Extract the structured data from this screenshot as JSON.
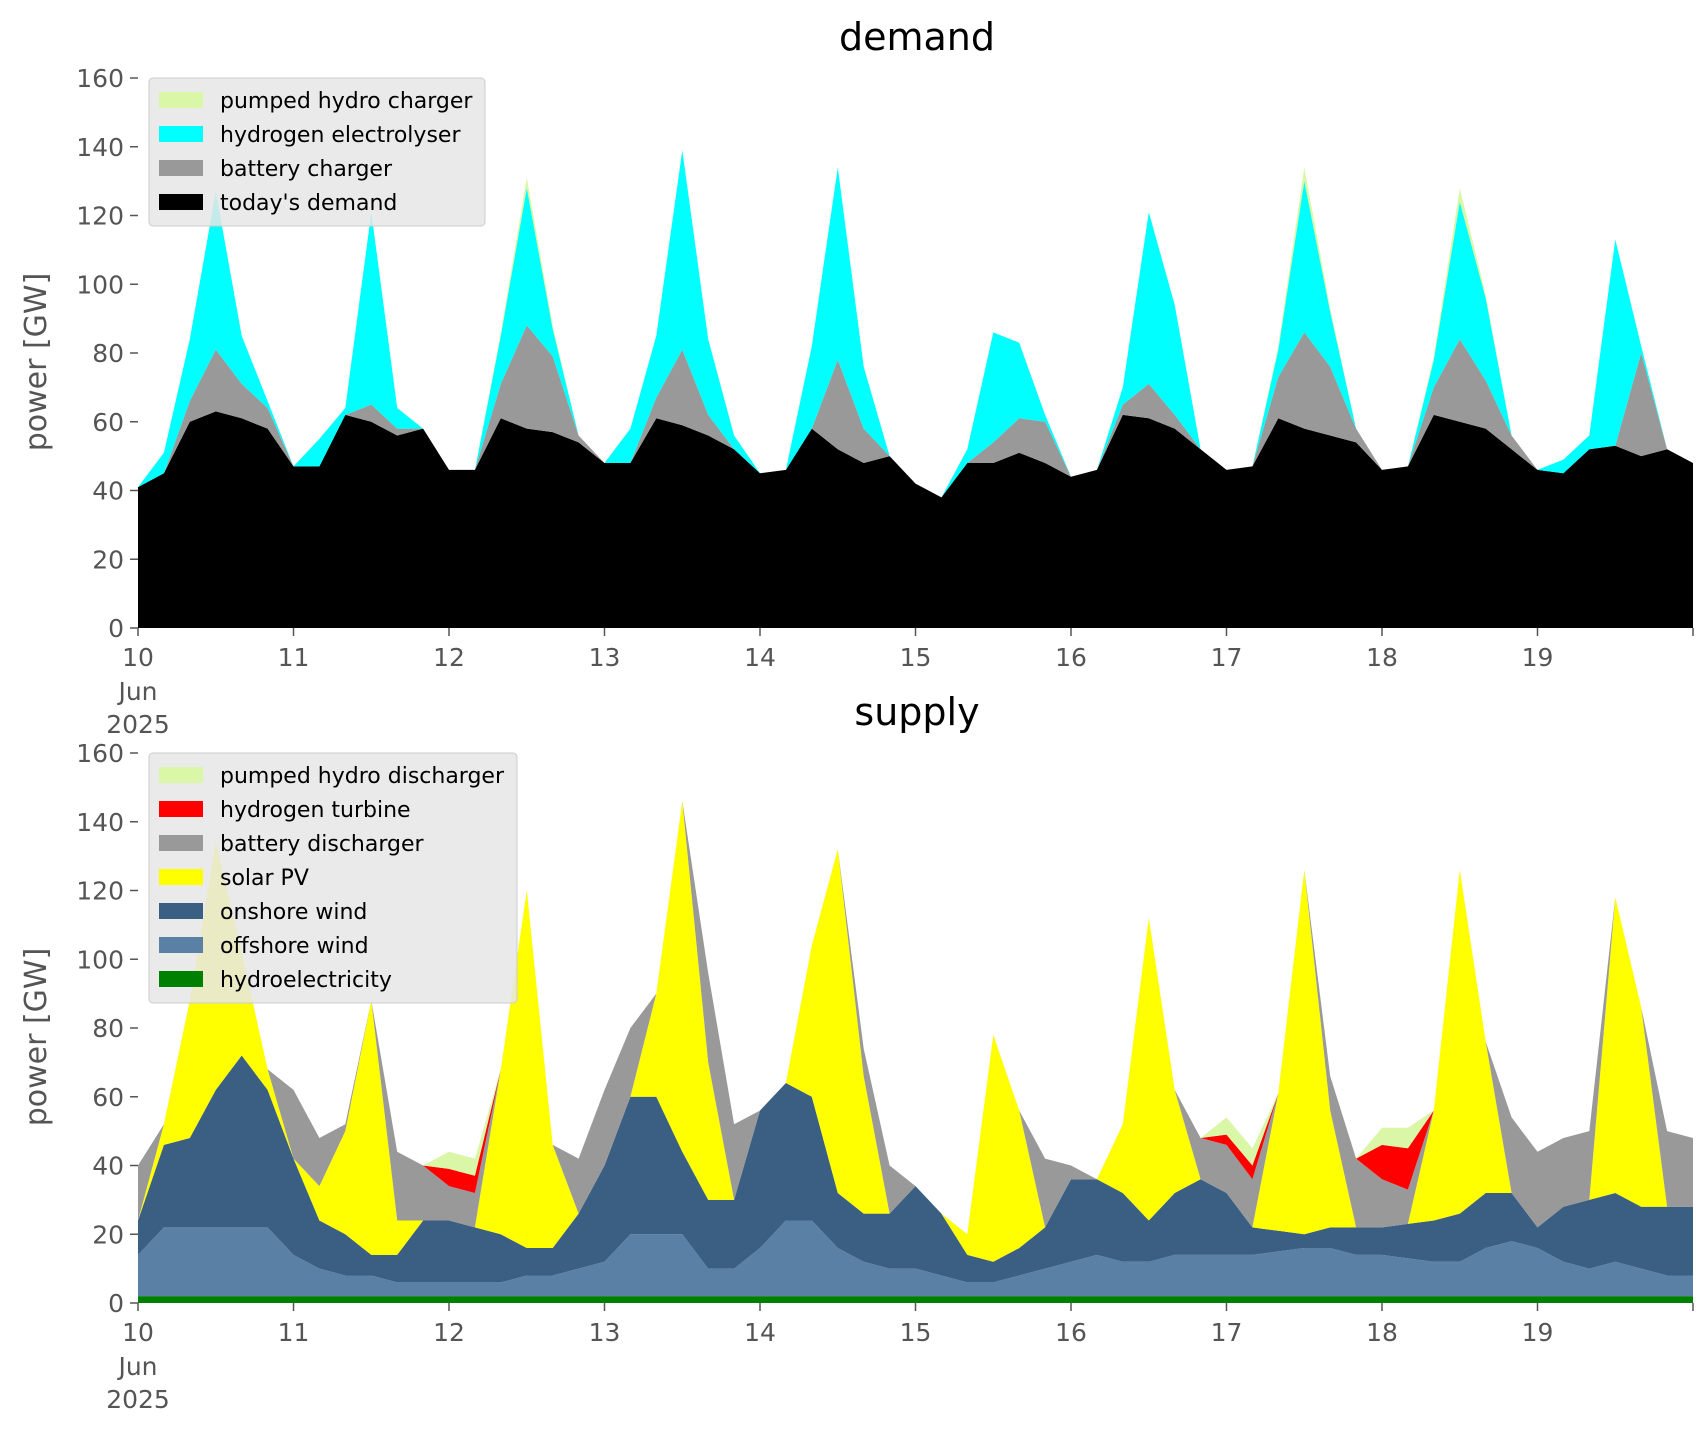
{
  "chart_data": [
    {
      "type": "area",
      "stacked": true,
      "title": "demand",
      "ylabel": "power [GW]",
      "ylim": [
        0,
        160
      ],
      "yticks": [
        0,
        20,
        40,
        60,
        80,
        100,
        120,
        140,
        160
      ],
      "xlim": [
        "2025-06-10 00:00",
        "2025-06-20 00:00"
      ],
      "xticks": [
        "10",
        "11",
        "12",
        "13",
        "14",
        "15",
        "16",
        "17",
        "18",
        "19"
      ],
      "xtick_sub": [
        "Jun",
        "2025"
      ],
      "legend_position": "upper-left",
      "x_units": "hours since 2025-06-10 00:00",
      "x": [
        0,
        4,
        8,
        12,
        16,
        20,
        24,
        28,
        32,
        36,
        40,
        44,
        48,
        52,
        56,
        60,
        64,
        68,
        72,
        76,
        80,
        84,
        88,
        92,
        96,
        100,
        104,
        108,
        112,
        116,
        120,
        124,
        128,
        132,
        136,
        140,
        144,
        148,
        152,
        156,
        160,
        164,
        168,
        172,
        176,
        180,
        184,
        188,
        192,
        196,
        200,
        204,
        208,
        212,
        216,
        220,
        224,
        228,
        232,
        236,
        240
      ],
      "series": [
        {
          "name": "today's demand",
          "color": "#000000",
          "values": [
            41,
            45,
            60,
            63,
            61,
            58,
            47,
            47,
            62,
            60,
            56,
            58,
            46,
            46,
            61,
            58,
            57,
            54,
            48,
            48,
            61,
            59,
            56,
            52,
            45,
            46,
            58,
            52,
            48,
            50,
            42,
            38,
            48,
            48,
            51,
            48,
            44,
            46,
            62,
            61,
            58,
            52,
            46,
            47,
            61,
            58,
            56,
            54,
            46,
            47,
            62,
            60,
            58,
            52,
            46,
            45,
            52,
            53,
            50,
            52,
            48
          ]
        },
        {
          "name": "battery charger",
          "color": "#999999",
          "values": [
            0,
            0,
            6,
            18,
            10,
            6,
            0,
            0,
            0,
            5,
            2,
            0,
            0,
            0,
            10,
            30,
            22,
            2,
            0,
            0,
            6,
            22,
            6,
            0,
            0,
            0,
            0,
            26,
            10,
            0,
            0,
            0,
            0,
            6,
            10,
            12,
            0,
            0,
            3,
            10,
            4,
            0,
            0,
            0,
            12,
            28,
            20,
            4,
            0,
            0,
            8,
            24,
            14,
            4,
            0,
            0,
            0,
            0,
            30,
            0,
            0
          ]
        },
        {
          "name": "hydrogen electrolyser",
          "color": "#00ffff",
          "values": [
            0,
            6,
            18,
            46,
            14,
            2,
            0,
            8,
            2,
            56,
            6,
            0,
            0,
            0,
            14,
            40,
            8,
            0,
            0,
            10,
            18,
            58,
            22,
            4,
            0,
            0,
            24,
            56,
            18,
            0,
            0,
            0,
            4,
            32,
            22,
            2,
            0,
            0,
            5,
            50,
            32,
            0,
            0,
            0,
            8,
            44,
            16,
            0,
            0,
            0,
            8,
            40,
            24,
            0,
            0,
            4,
            4,
            60,
            2,
            0,
            0
          ]
        },
        {
          "name": "pumped hydro charger",
          "color": "#d9f7a6",
          "values": [
            0,
            0,
            0,
            0,
            0,
            0,
            0,
            0,
            0,
            0,
            0,
            0,
            0,
            0,
            1,
            3,
            1,
            0,
            0,
            0,
            0,
            0,
            0,
            0,
            0,
            0,
            0,
            0,
            0,
            0,
            0,
            0,
            0,
            0,
            0,
            0,
            0,
            0,
            0,
            0,
            0,
            0,
            0,
            0,
            1,
            4,
            1,
            0,
            0,
            0,
            1,
            4,
            1,
            0,
            0,
            0,
            0,
            0,
            0,
            0,
            0
          ]
        }
      ]
    },
    {
      "type": "area",
      "stacked": true,
      "title": "supply",
      "ylabel": "power [GW]",
      "ylim": [
        0,
        160
      ],
      "yticks": [
        0,
        20,
        40,
        60,
        80,
        100,
        120,
        140,
        160
      ],
      "xlim": [
        "2025-06-10 00:00",
        "2025-06-20 00:00"
      ],
      "xticks": [
        "10",
        "11",
        "12",
        "13",
        "14",
        "15",
        "16",
        "17",
        "18",
        "19"
      ],
      "xtick_sub": [
        "Jun",
        "2025"
      ],
      "legend_position": "upper-left",
      "x_units": "hours since 2025-06-10 00:00",
      "x": [
        0,
        4,
        8,
        12,
        16,
        20,
        24,
        28,
        32,
        36,
        40,
        44,
        48,
        52,
        56,
        60,
        64,
        68,
        72,
        76,
        80,
        84,
        88,
        92,
        96,
        100,
        104,
        108,
        112,
        116,
        120,
        124,
        128,
        132,
        136,
        140,
        144,
        148,
        152,
        156,
        160,
        164,
        168,
        172,
        176,
        180,
        184,
        188,
        192,
        196,
        200,
        204,
        208,
        212,
        216,
        220,
        224,
        228,
        232,
        236,
        240
      ],
      "series": [
        {
          "name": "hydroelectricity",
          "color": "#008000",
          "values": [
            2,
            2,
            2,
            2,
            2,
            2,
            2,
            2,
            2,
            2,
            2,
            2,
            2,
            2,
            2,
            2,
            2,
            2,
            2,
            2,
            2,
            2,
            2,
            2,
            2,
            2,
            2,
            2,
            2,
            2,
            2,
            2,
            2,
            2,
            2,
            2,
            2,
            2,
            2,
            2,
            2,
            2,
            2,
            2,
            2,
            2,
            2,
            2,
            2,
            2,
            2,
            2,
            2,
            2,
            2,
            2,
            2,
            2,
            2,
            2,
            2
          ]
        },
        {
          "name": "offshore wind",
          "color": "#5b80a5",
          "values": [
            12,
            20,
            20,
            20,
            20,
            20,
            12,
            8,
            6,
            6,
            4,
            4,
            4,
            4,
            4,
            6,
            6,
            8,
            10,
            18,
            18,
            18,
            8,
            8,
            14,
            22,
            22,
            14,
            10,
            8,
            8,
            6,
            4,
            4,
            6,
            8,
            10,
            12,
            10,
            10,
            12,
            12,
            12,
            12,
            13,
            14,
            14,
            12,
            12,
            11,
            10,
            10,
            14,
            16,
            14,
            10,
            8,
            10,
            8,
            6,
            6
          ]
        },
        {
          "name": "onshore wind",
          "color": "#3a5f82",
          "values": [
            10,
            24,
            26,
            40,
            50,
            40,
            28,
            14,
            12,
            6,
            8,
            18,
            18,
            16,
            14,
            8,
            8,
            16,
            28,
            40,
            40,
            24,
            20,
            20,
            40,
            40,
            36,
            16,
            14,
            16,
            24,
            18,
            8,
            6,
            8,
            12,
            24,
            22,
            20,
            12,
            18,
            22,
            18,
            8,
            6,
            4,
            6,
            8,
            8,
            10,
            12,
            14,
            16,
            14,
            6,
            16,
            20,
            20,
            18,
            20,
            20
          ]
        },
        {
          "name": "solar PV",
          "color": "#ffff00",
          "values": [
            0,
            6,
            40,
            72,
            30,
            6,
            0,
            10,
            30,
            74,
            10,
            0,
            0,
            0,
            48,
            104,
            30,
            0,
            0,
            0,
            30,
            102,
            40,
            0,
            0,
            0,
            44,
            100,
            40,
            0,
            0,
            0,
            6,
            66,
            40,
            0,
            0,
            0,
            20,
            88,
            30,
            0,
            0,
            0,
            40,
            106,
            34,
            0,
            0,
            0,
            32,
            100,
            44,
            0,
            0,
            0,
            0,
            86,
            58,
            0,
            0
          ]
        },
        {
          "name": "battery discharger",
          "color": "#999999",
          "values": [
            16,
            0,
            0,
            0,
            0,
            0,
            20,
            14,
            2,
            0,
            20,
            16,
            10,
            10,
            0,
            0,
            0,
            16,
            22,
            20,
            0,
            0,
            26,
            22,
            0,
            0,
            0,
            0,
            8,
            14,
            0,
            0,
            0,
            0,
            0,
            20,
            4,
            0,
            0,
            0,
            0,
            12,
            14,
            14,
            0,
            0,
            10,
            20,
            14,
            10,
            0,
            0,
            0,
            22,
            22,
            20,
            20,
            0,
            0,
            22,
            20
          ]
        },
        {
          "name": "hydrogen turbine",
          "color": "#ff0000",
          "values": [
            0,
            0,
            0,
            0,
            0,
            0,
            0,
            0,
            0,
            0,
            0,
            0,
            5,
            5,
            0,
            0,
            0,
            0,
            0,
            0,
            0,
            0,
            0,
            0,
            0,
            0,
            0,
            0,
            0,
            0,
            0,
            0,
            0,
            0,
            0,
            0,
            0,
            0,
            0,
            0,
            0,
            0,
            3,
            4,
            0,
            0,
            0,
            0,
            10,
            12,
            0,
            0,
            0,
            0,
            0,
            0,
            0,
            0,
            0,
            0,
            0
          ]
        },
        {
          "name": "pumped hydro discharger",
          "color": "#d9f7a6",
          "values": [
            0,
            0,
            0,
            0,
            0,
            0,
            0,
            0,
            0,
            0,
            0,
            0,
            5,
            5,
            0,
            0,
            0,
            0,
            0,
            0,
            0,
            0,
            0,
            0,
            0,
            0,
            0,
            0,
            0,
            0,
            0,
            0,
            0,
            0,
            0,
            0,
            0,
            0,
            0,
            0,
            0,
            0,
            5,
            5,
            0,
            0,
            0,
            0,
            5,
            6,
            0,
            0,
            0,
            0,
            0,
            0,
            0,
            0,
            0,
            0,
            0
          ]
        }
      ]
    }
  ]
}
